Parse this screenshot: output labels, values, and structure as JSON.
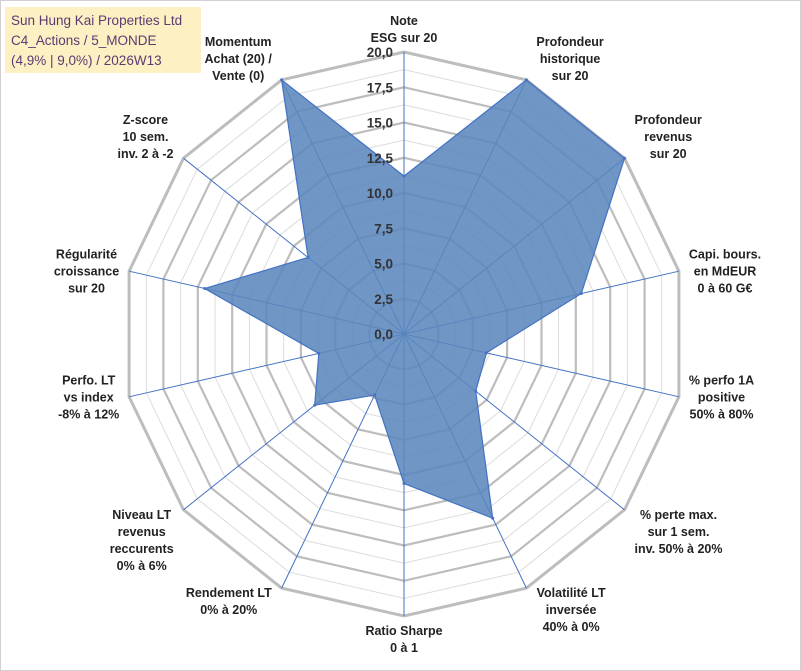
{
  "title_box": {
    "line1": "Sun Hung Kai Properties Ltd",
    "line2": "C4_Actions / 5_MONDE",
    "line3": "(4,9% | 9,0%) / 2026W13"
  },
  "chart_data": {
    "type": "radar",
    "title": "Sun Hung Kai Properties Ltd",
    "rlim": [
      0,
      20
    ],
    "ticks": [
      "0,0",
      "2,5",
      "5,0",
      "7,5",
      "10,0",
      "12,5",
      "15,0",
      "17,5",
      "20,0"
    ],
    "tick_values": [
      0,
      2.5,
      5,
      7.5,
      10,
      12.5,
      15,
      17.5,
      20
    ],
    "axes": [
      {
        "label": [
          "Note",
          "ESG sur 20"
        ],
        "value": 11.2
      },
      {
        "label": [
          "Profondeur",
          "historique",
          "sur 20"
        ],
        "value": 20
      },
      {
        "label": [
          "Profondeur",
          "revenus",
          "sur 20"
        ],
        "value": 20
      },
      {
        "label": [
          "Capi. bours.",
          "en MdEUR",
          "0 à 60 G€"
        ],
        "value": 12.9
      },
      {
        "label": [
          "% perfo 1A",
          "positive",
          "50% à 80%"
        ],
        "value": 6.0
      },
      {
        "label": [
          "% perte max.",
          "sur 1 sem.",
          "inv. 50% à 20%"
        ],
        "value": 6.5
      },
      {
        "label": [
          "Volatilité LT",
          "inversée",
          "40% à 0%"
        ],
        "value": 14.5
      },
      {
        "label": [
          "Ratio Sharpe",
          "0 à 1"
        ],
        "value": 10.6
      },
      {
        "label": [
          "Rendement LT",
          "0% à 20%"
        ],
        "value": 4.8
      },
      {
        "label": [
          "Niveau LT",
          "revenus",
          "reccurents",
          "0% à 6%"
        ],
        "value": 8.1
      },
      {
        "label": [
          "Perfo. LT",
          "vs index",
          "-8% à 12%"
        ],
        "value": 6.2
      },
      {
        "label": [
          "Régularité",
          "croissance",
          "sur 20"
        ],
        "value": 14.5
      },
      {
        "label": [
          "Z-score",
          "10 sem.",
          "inv. 2 à -2"
        ],
        "value": 8.7
      },
      {
        "label": [
          "Momentum",
          "Achat (20) /",
          "Vente (0)"
        ],
        "value": 20
      }
    ],
    "colors": {
      "fill": "#5b87bd",
      "stroke": "#4472c4",
      "grid": "#c8c8c8",
      "spoke": "#4472c4"
    }
  }
}
